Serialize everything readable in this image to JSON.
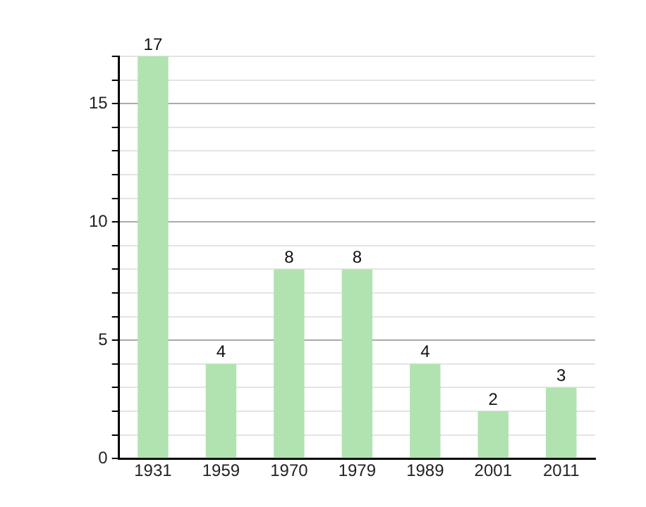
{
  "chart_data": {
    "type": "bar",
    "categories": [
      "1931",
      "1959",
      "1970",
      "1979",
      "1989",
      "2001",
      "2011"
    ],
    "values": [
      17,
      4,
      8,
      8,
      4,
      2,
      3
    ],
    "color": "#b0e3b0",
    "ylim": [
      0,
      17
    ],
    "yticks": [
      0,
      {
        "value": 1,
        "label": null
      },
      {
        "value": 2,
        "label": null
      },
      {
        "value": 3,
        "label": null
      },
      {
        "value": 4,
        "label": null
      },
      5,
      {
        "value": 6,
        "label": null
      },
      {
        "value": 7,
        "label": null
      },
      {
        "value": 8,
        "label": null
      },
      {
        "value": 9,
        "label": null
      },
      10,
      {
        "value": 11,
        "label": null
      },
      {
        "value": 12,
        "label": null
      },
      {
        "value": 13,
        "label": null
      },
      {
        "value": 14,
        "label": null
      },
      15,
      {
        "value": 16,
        "label": null
      },
      {
        "value": 17,
        "label": null
      }
    ],
    "grid": true,
    "data_labels": true
  }
}
